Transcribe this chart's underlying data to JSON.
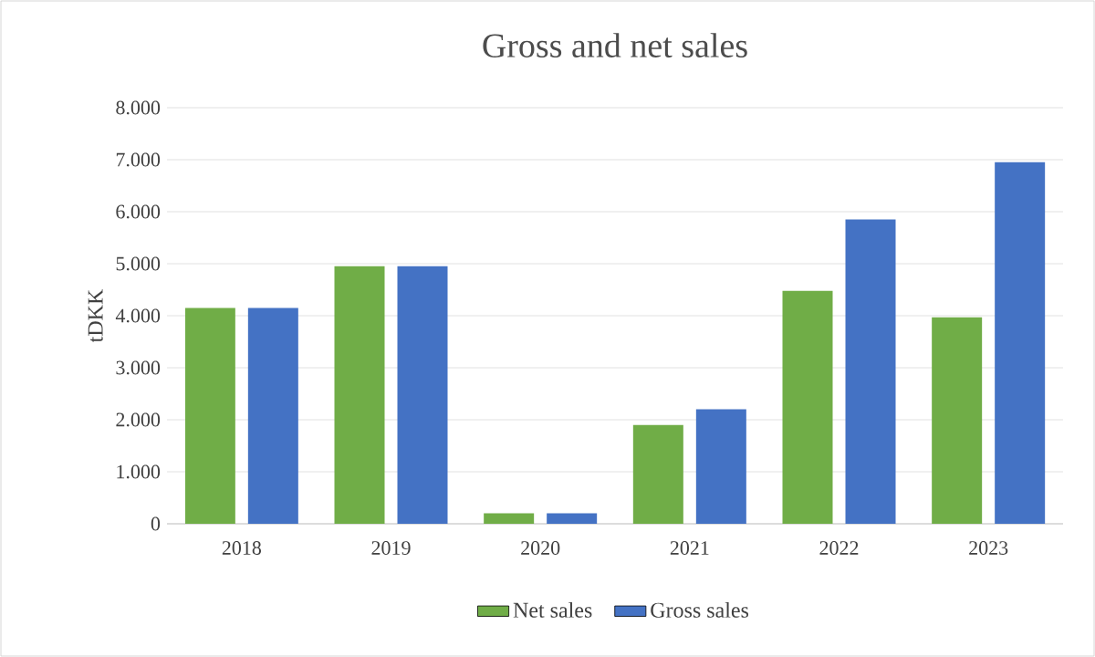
{
  "chart_data": {
    "type": "bar",
    "title": "Gross and net sales",
    "ylabel": "tDKK",
    "categories": [
      "2018",
      "2019",
      "2020",
      "2021",
      "2022",
      "2023"
    ],
    "series": [
      {
        "name": "Net sales",
        "color": "#70ad47",
        "values": [
          4150,
          4950,
          200,
          1900,
          4480,
          3970
        ]
      },
      {
        "name": "Gross sales",
        "color": "#4472c4",
        "values": [
          4150,
          4950,
          200,
          2200,
          5850,
          6950
        ]
      }
    ],
    "ylim": [
      0,
      8000
    ],
    "yticks": [
      {
        "value": 0,
        "label": "0"
      },
      {
        "value": 1000,
        "label": "1.000"
      },
      {
        "value": 2000,
        "label": "2.000"
      },
      {
        "value": 3000,
        "label": "3.000"
      },
      {
        "value": 4000,
        "label": "4.000"
      },
      {
        "value": 5000,
        "label": "5.000"
      },
      {
        "value": 6000,
        "label": "6.000"
      },
      {
        "value": 7000,
        "label": "7.000"
      },
      {
        "value": 8000,
        "label": "8.000"
      }
    ],
    "grid": "y",
    "legend": "bottom"
  }
}
